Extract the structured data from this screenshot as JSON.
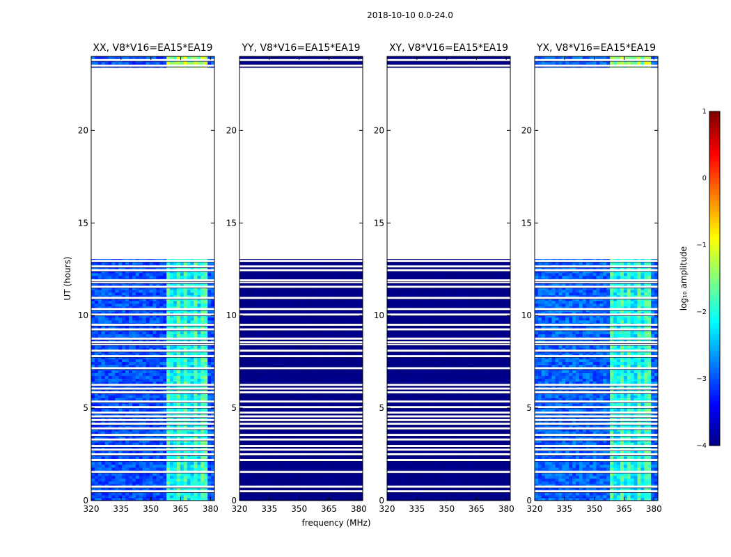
{
  "title": "2018-10-10 0.0-24.0",
  "chart_data": {
    "type": "heatmap",
    "xlabel": "frequency (MHz)",
    "ylabel": "UT (hours)",
    "xlim": [
      320,
      382
    ],
    "ylim": [
      0,
      24
    ],
    "xticks": [
      "320",
      "335",
      "350",
      "365",
      "380"
    ],
    "yticks": [
      "0",
      "5",
      "10",
      "15",
      "20"
    ],
    "rfi_band_mhz": [
      358,
      378
    ],
    "data_gaps_hours": [
      [
        13.1,
        23.4
      ]
    ],
    "flagged_rows_hours": [
      0.5,
      0.75,
      1.55,
      2.2,
      2.5,
      2.75,
      2.95,
      3.3,
      3.55,
      3.9,
      4.15,
      4.35,
      4.55,
      4.75,
      5.05,
      5.35,
      5.85,
      6.05,
      6.25,
      7.15,
      7.8,
      8.1,
      8.45,
      8.55,
      8.75,
      9.25,
      9.5,
      10.05,
      10.35,
      10.95,
      11.55,
      11.8,
      11.9,
      12.45,
      12.65,
      12.95,
      23.5,
      23.8
    ],
    "panels": [
      {
        "title": "XX, V8*V16=EA15*EA19",
        "kind": "active",
        "mean_log10": -3.0,
        "rfi_log10": -2.0
      },
      {
        "title": "YY, V8*V16=EA15*EA19",
        "kind": "flat",
        "mean_log10": -4.0,
        "rfi_log10": -4.0
      },
      {
        "title": "XY, V8*V16=EA15*EA19",
        "kind": "flat",
        "mean_log10": -4.0,
        "rfi_log10": -4.0
      },
      {
        "title": "YX, V8*V16=EA15*EA19",
        "kind": "active",
        "mean_log10": -2.9,
        "rfi_log10": -2.0
      }
    ],
    "colorbar": {
      "label": "log₁₀ amplitude",
      "min": -4,
      "max": 1,
      "ticks": [
        "1",
        "0",
        "−1",
        "−2",
        "−3",
        "−4"
      ],
      "colormap": "jet"
    }
  }
}
